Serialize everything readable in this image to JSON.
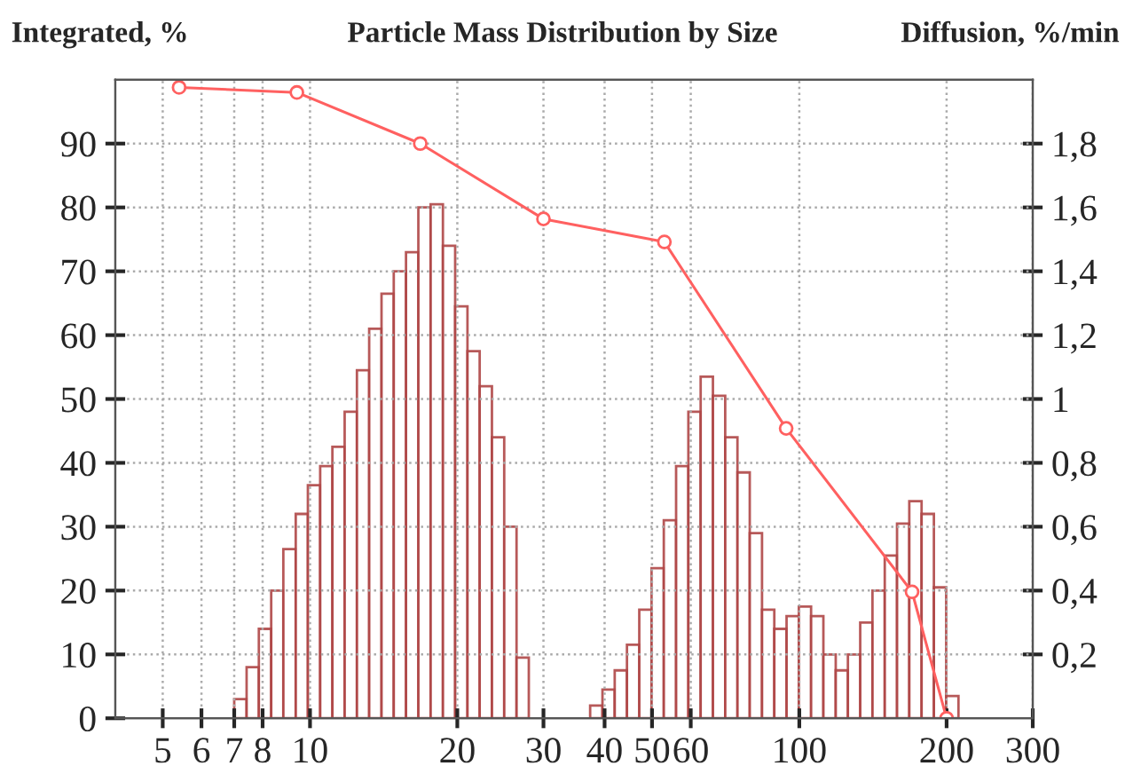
{
  "chart_data": {
    "type": "histogram",
    "title": "Particle Mass Distribution by Size",
    "ylabel": "Integrated, %",
    "y2label": "Diffusion, %/min",
    "log": "x",
    "xlim": [
      4,
      300
    ],
    "xticks": [
      5,
      6,
      7,
      8,
      10,
      20,
      30,
      40,
      50,
      60,
      100,
      200,
      300
    ],
    "ylim": [
      0,
      100
    ],
    "yticks": [
      0,
      10,
      20,
      30,
      40,
      50,
      60,
      70,
      80,
      90
    ],
    "y2lim": [
      0,
      2
    ],
    "y2ticks": [
      {
        "value": 0.2,
        "label": "0,2"
      },
      {
        "value": 0.4,
        "label": "0,4"
      },
      {
        "value": 0.6,
        "label": "0,6"
      },
      {
        "value": 0.8,
        "label": "0,8"
      },
      {
        "value": 1,
        "label": "1"
      },
      {
        "value": 1.2,
        "label": "1,2"
      },
      {
        "value": 1.4,
        "label": "1,4"
      },
      {
        "value": 1.6,
        "label": "1,6"
      },
      {
        "value": 1.8,
        "label": "1,8"
      }
    ],
    "grid": true,
    "series": [
      {
        "axis": "y2",
        "color": "#b04848",
        "bins": [
          7.0,
          7.42,
          7.86,
          8.33,
          8.82,
          9.35,
          9.9,
          10.49,
          11.11,
          11.77,
          12.47,
          13.21,
          14.0,
          14.83,
          15.71,
          16.65,
          17.64,
          18.69,
          19.8,
          20.98,
          22.22,
          23.54,
          24.94,
          26.43,
          28.0,
          29.66,
          31.43,
          33.3,
          35.28,
          37.37,
          39.6,
          41.95,
          44.44,
          47.09,
          49.89,
          52.85,
          56.0,
          59.33,
          62.86,
          66.6,
          70.56,
          74.75,
          79.2,
          83.91,
          88.9,
          94.18,
          99.78,
          105.7,
          112.0,
          118.7,
          125.7,
          133.2,
          141.1,
          149.5,
          158.4,
          167.8,
          177.8,
          188.4,
          199.6,
          211.5
        ],
        "values": [
          0.06,
          0.16,
          0.28,
          0.4,
          0.53,
          0.64,
          0.73,
          0.79,
          0.85,
          0.96,
          1.09,
          1.22,
          1.33,
          1.4,
          1.46,
          1.6,
          1.61,
          1.48,
          1.29,
          1.15,
          1.04,
          0.88,
          0.6,
          0.19,
          null,
          null,
          null,
          null,
          null,
          0.04,
          0.09,
          0.15,
          0.23,
          0.34,
          0.47,
          0.62,
          0.79,
          0.96,
          1.07,
          1.01,
          0.88,
          0.77,
          0.58,
          0.34,
          0.28,
          0.32,
          0.35,
          0.32,
          0.2,
          0.15,
          0.2,
          0.3,
          0.4,
          0.51,
          0.61,
          0.68,
          0.64,
          0.41,
          0.07
        ]
      },
      {
        "type": "line",
        "color": "#ff6060",
        "marker": "circle",
        "line_style": "solid",
        "x": [
          5.4,
          9.4,
          16.8,
          30,
          53,
          94,
          170,
          200
        ],
        "values": [
          98.8,
          98,
          90,
          78.2,
          74.6,
          45.4,
          19.8,
          0
        ]
      }
    ]
  }
}
